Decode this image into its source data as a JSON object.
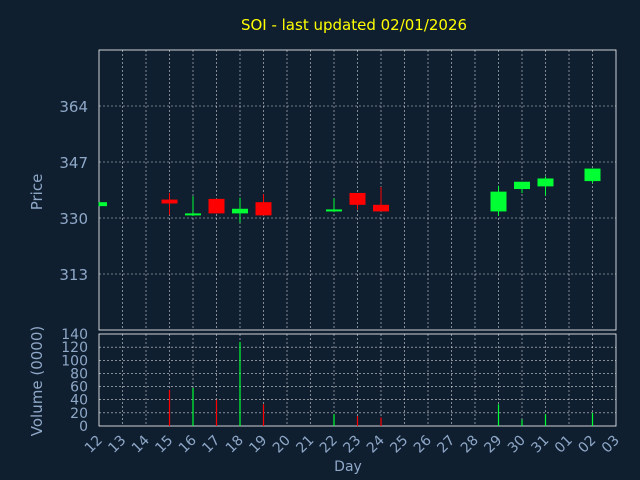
{
  "colors": {
    "background": "#0f1f30",
    "title": "#ffff00",
    "axis_text": "#8fa8c8",
    "grid": "#ffffff",
    "up": "#00ff33",
    "down": "#ff0000"
  },
  "chart_data": {
    "type": "candlestick",
    "title": "SOI - last updated 02/01/2026",
    "xlabel": "Day",
    "price_axis": {
      "label": "Price",
      "ylim": [
        296,
        381
      ],
      "ticks": [
        313,
        330,
        347,
        364
      ]
    },
    "volume_axis": {
      "label": "Volume (0000)",
      "ylim": [
        0,
        140
      ],
      "ticks": [
        0,
        20,
        40,
        60,
        80,
        100,
        120,
        140
      ]
    },
    "grid": true,
    "categories": [
      "12",
      "13",
      "14",
      "15",
      "16",
      "17",
      "18",
      "19",
      "20",
      "21",
      "22",
      "23",
      "24",
      "25",
      "26",
      "27",
      "28",
      "29",
      "30",
      "31",
      "01",
      "02",
      "03"
    ],
    "candles": [
      {
        "day": "12",
        "open": 333.6,
        "close": 334.8,
        "high": 334.8,
        "low": 333.6,
        "volume": 0
      },
      {
        "day": "15",
        "open": 335.6,
        "close": 334.4,
        "high": 337.6,
        "low": 331.0,
        "volume": 55
      },
      {
        "day": "16",
        "open": 331.0,
        "close": 331.4,
        "high": 336.6,
        "low": 330.6,
        "volume": 58
      },
      {
        "day": "17",
        "open": 335.8,
        "close": 331.4,
        "high": 335.8,
        "low": 331.4,
        "volume": 40
      },
      {
        "day": "18",
        "open": 331.4,
        "close": 332.8,
        "high": 336.2,
        "low": 328.6,
        "volume": 128
      },
      {
        "day": "19",
        "open": 334.8,
        "close": 330.8,
        "high": 337.2,
        "low": 330.8,
        "volume": 33
      },
      {
        "day": "22",
        "open": 332.2,
        "close": 332.6,
        "high": 336.0,
        "low": 331.8,
        "volume": 18
      },
      {
        "day": "23",
        "open": 337.6,
        "close": 334.0,
        "high": 337.6,
        "low": 332.6,
        "volume": 15
      },
      {
        "day": "24",
        "open": 334.0,
        "close": 332.0,
        "high": 339.4,
        "low": 332.0,
        "volume": 13
      },
      {
        "day": "29",
        "open": 332.0,
        "close": 338.0,
        "high": 339.8,
        "low": 330.6,
        "volume": 33
      },
      {
        "day": "30",
        "open": 338.8,
        "close": 341.0,
        "high": 341.0,
        "low": 337.6,
        "volume": 10
      },
      {
        "day": "31",
        "open": 339.6,
        "close": 342.0,
        "high": 342.6,
        "low": 336.8,
        "volume": 18
      },
      {
        "day": "02",
        "open": 341.2,
        "close": 345.0,
        "high": 345.0,
        "low": 340.6,
        "volume": 20
      }
    ]
  }
}
